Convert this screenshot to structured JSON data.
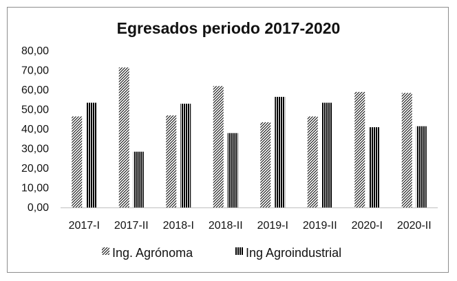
{
  "chart_data": {
    "type": "bar",
    "title": "Egresados periodo 2017-2020",
    "xlabel": "",
    "ylabel": "",
    "categories": [
      "2017-I",
      "2017-II",
      "2018-I",
      "2018-II",
      "2019-I",
      "2019-II",
      "2020-I",
      "2020-II"
    ],
    "series": [
      {
        "name": "Ing. Agrónoma",
        "values": [
          46.5,
          71.5,
          47.0,
          62.0,
          43.5,
          46.5,
          59.0,
          58.5
        ],
        "pattern": "diagonal-hatch"
      },
      {
        "name": "Ing Agroindustrial",
        "values": [
          53.5,
          28.5,
          53.0,
          38.0,
          56.5,
          53.5,
          41.0,
          41.5
        ],
        "pattern": "vertical-stripes"
      }
    ],
    "ylim": [
      0,
      80
    ],
    "yticks": [
      "0,00",
      "10,00",
      "20,00",
      "30,00",
      "40,00",
      "50,00",
      "60,00",
      "70,00",
      "80,00"
    ],
    "grid": false,
    "legend_position": "bottom",
    "colors": {
      "bar_stroke": "#000000",
      "frame": "#8c8c8c",
      "axis": "#bfbfbf"
    }
  }
}
